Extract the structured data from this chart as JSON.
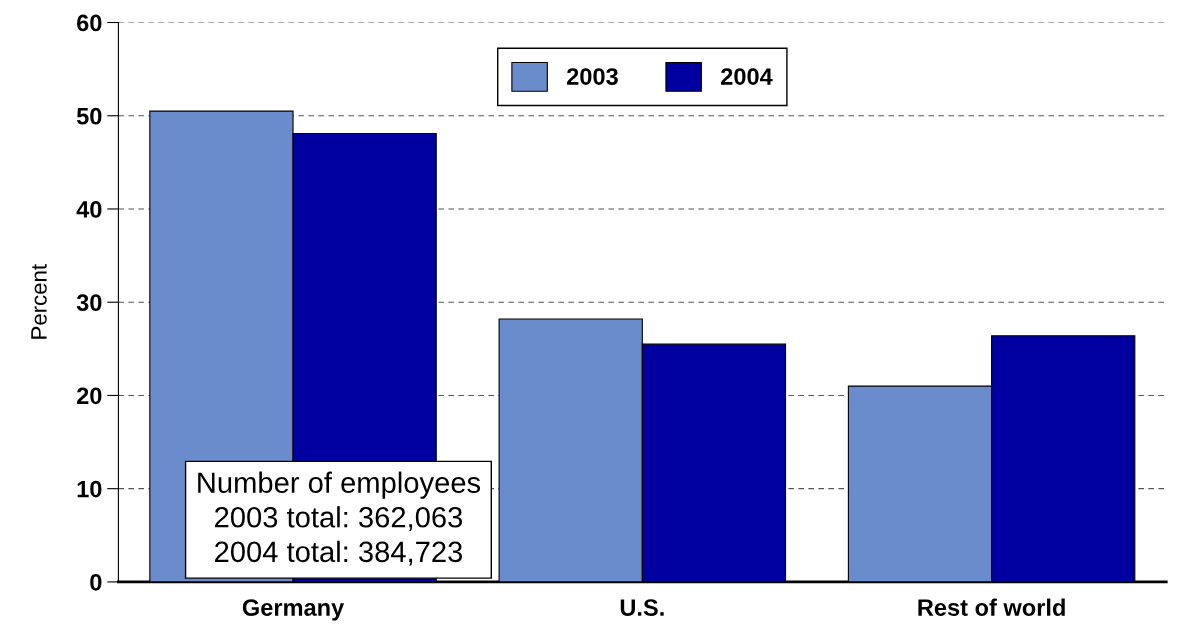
{
  "chart_data": {
    "type": "bar",
    "ylabel": "Percent",
    "categories": [
      "Germany",
      "U.S.",
      "Rest of world"
    ],
    "series": [
      {
        "name": "2003",
        "color": "#6b8ccc",
        "values": [
          50.5,
          28.2,
          21.0
        ]
      },
      {
        "name": "2004",
        "color": "#0000a0",
        "values": [
          48.1,
          25.5,
          26.4
        ]
      }
    ],
    "ylim": [
      0,
      60
    ],
    "yticks": [
      0,
      10,
      20,
      30,
      40,
      50,
      60
    ],
    "grid": "y",
    "legend": "top",
    "annotations": [
      "Number of employees\n2003 total: 362,063\n2004 total: 384,723"
    ]
  }
}
